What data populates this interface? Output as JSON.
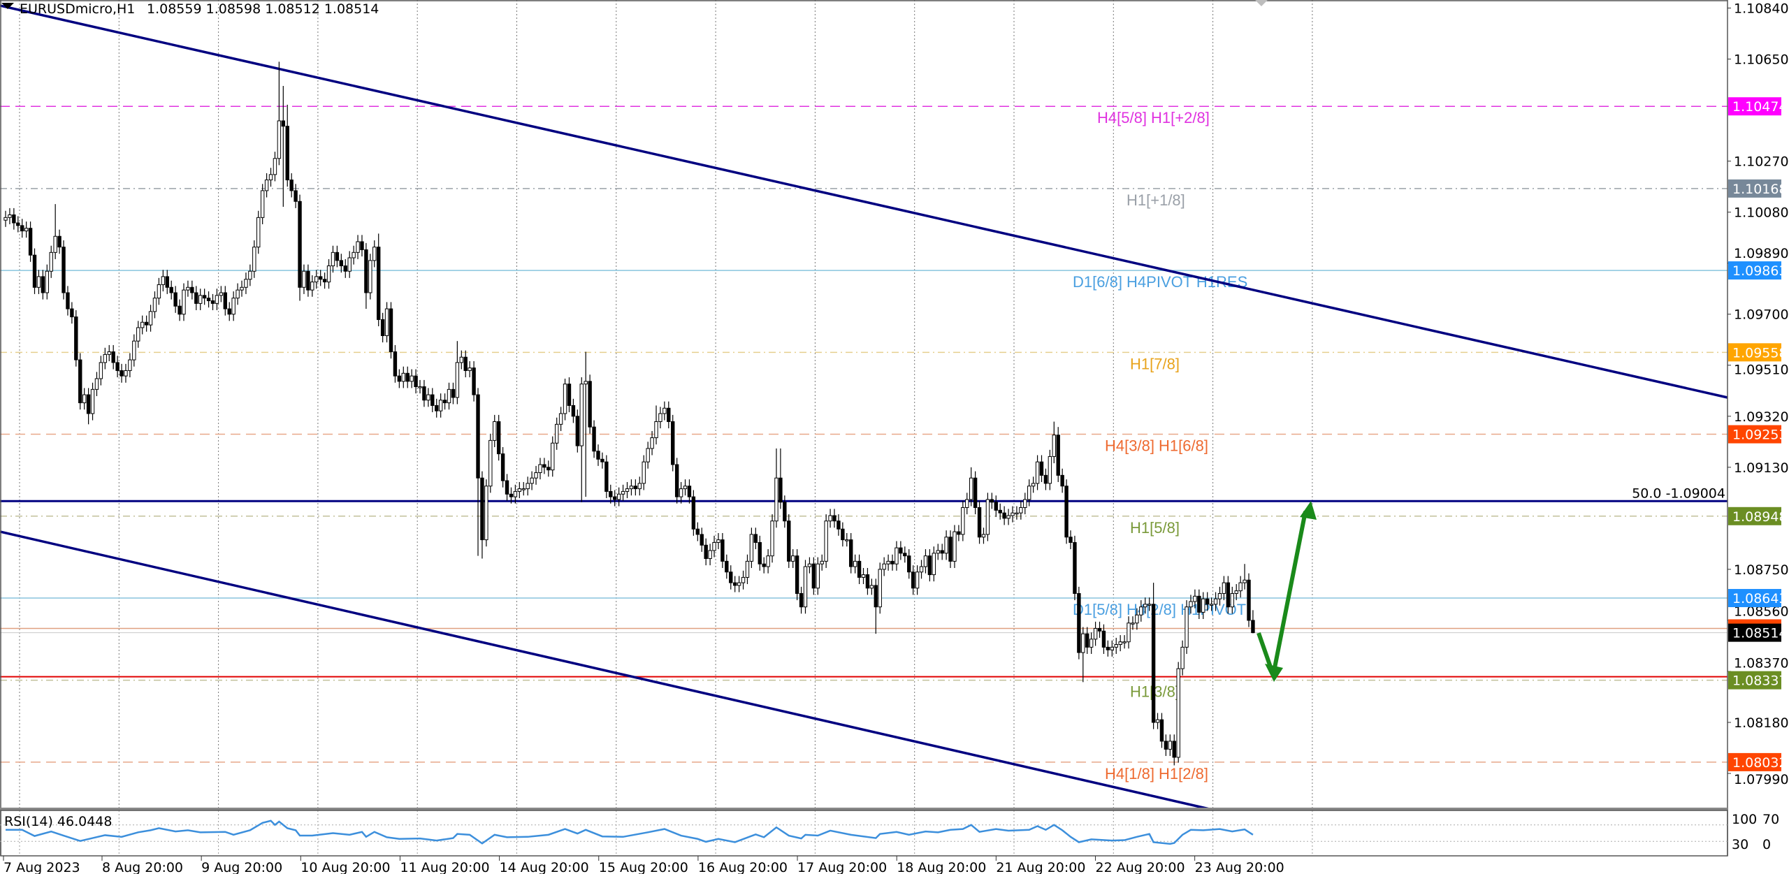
{
  "header": {
    "symbol": "EURUSDmicro,H1",
    "ohlc": "1.08559 1.08598 1.08512 1.08514"
  },
  "rsi_panel": {
    "label": "RSI(14) 46.0448",
    "scale_labels": [
      "100",
      "70",
      "30",
      "0"
    ],
    "line_color": "#3c8fdc"
  },
  "chart_data": {
    "type": "candlestick",
    "title": "EURUSDmicro,H1",
    "ylim": [
      1.0786,
      1.1087
    ],
    "grid": true,
    "y_ticks": [
      "1.10840",
      "1.10650",
      "1.10270",
      "1.10080",
      "1.09890",
      "1.09700",
      "1.09510",
      "1.09320",
      "1.09130",
      "1.08750",
      "1.08560",
      "1.08370",
      "1.08180",
      "1.07990"
    ],
    "x_ticks": [
      "7 Aug 2023",
      "8 Aug 20:00",
      "9 Aug 20:00",
      "10 Aug 20:00",
      "11 Aug 20:00",
      "14 Aug 20:00",
      "15 Aug 20:00",
      "16 Aug 20:00",
      "17 Aug 20:00",
      "18 Aug 20:00",
      "21 Aug 20:00",
      "22 Aug 20:00",
      "23 Aug 20:00"
    ],
    "candles": {
      "first_open": 1.1005,
      "close": [
        1.1006,
        1.1007,
        1.1004,
        1.1003,
        1.1001,
        1.1002,
        1.0992,
        1.098,
        1.0984,
        1.0978,
        1.0986,
        1.0993,
        1.0999,
        1.0995,
        1.0978,
        1.0972,
        1.0969,
        1.0953,
        1.0937,
        1.094,
        1.0933,
        1.0942,
        1.0946,
        1.0952,
        1.0955,
        1.0956,
        1.0952,
        1.0949,
        1.0947,
        1.0949,
        1.0953,
        1.096,
        1.0965,
        1.0967,
        1.0966,
        1.0971,
        1.0976,
        1.0981,
        1.0984,
        1.098,
        1.0978,
        1.0973,
        1.097,
        1.0979,
        1.098,
        1.0978,
        1.0974,
        1.0977,
        1.0976,
        1.0975,
        1.0974,
        1.0977,
        1.0978,
        1.0972,
        1.097,
        1.0976,
        1.0979,
        1.098,
        1.0983,
        1.0986,
        1.0995,
        1.1006,
        1.1016,
        1.102,
        1.1022,
        1.1028,
        1.1042,
        1.104,
        1.102,
        1.1016,
        1.1012,
        1.098,
        1.0986,
        1.0979,
        1.0982,
        1.0984,
        1.0983,
        1.0982,
        1.0988,
        1.0993,
        1.099,
        1.0988,
        1.0986,
        1.0991,
        1.0993,
        1.0997,
        1.0994,
        1.0978,
        1.099,
        1.0995,
        1.0968,
        1.0962,
        1.0972,
        1.0956,
        1.0947,
        1.0945,
        1.0948,
        1.0945,
        1.0947,
        1.0943,
        1.0943,
        1.0938,
        1.094,
        1.0936,
        1.0934,
        1.0938,
        1.0937,
        1.0942,
        1.0939,
        1.0952,
        1.0954,
        1.0949,
        1.095,
        1.094,
        1.0909,
        1.0886,
        1.0906,
        1.0923,
        1.093,
        1.0918,
        1.0908,
        1.0903,
        1.0902,
        1.0904,
        1.0905,
        1.0905,
        1.0907,
        1.0909,
        1.0911,
        1.0914,
        1.0913,
        1.0912,
        1.0922,
        1.0929,
        1.0933,
        1.0944,
        1.0936,
        1.0932,
        1.0921,
        1.0944,
        1.0945,
        1.0928,
        1.0919,
        1.0916,
        1.0915,
        1.0904,
        1.0902,
        1.0901,
        1.0903,
        1.0904,
        1.0905,
        1.0906,
        1.0905,
        1.0907,
        1.0915,
        1.092,
        1.0924,
        1.093,
        1.0933,
        1.0935,
        1.093,
        1.0914,
        1.0902,
        1.0905,
        1.0906,
        1.0902,
        1.089,
        1.0888,
        1.0884,
        1.0879,
        1.0882,
        1.0885,
        1.0886,
        1.0878,
        1.0874,
        1.087,
        1.0869,
        1.087,
        1.0872,
        1.0878,
        1.0888,
        1.0885,
        1.0877,
        1.0876,
        1.088,
        1.0893,
        1.0909,
        1.09,
        1.0893,
        1.0878,
        1.088,
        1.0866,
        1.0861,
        1.0876,
        1.0877,
        1.0868,
        1.0877,
        1.0878,
        1.0893,
        1.0895,
        1.0893,
        1.089,
        1.0886,
        1.0886,
        1.0876,
        1.0878,
        1.0872,
        1.0873,
        1.0868,
        1.0869,
        1.0861,
        1.0875,
        1.0877,
        1.0878,
        1.0877,
        1.0883,
        1.0881,
        1.088,
        1.0874,
        1.0868,
        1.0874,
        1.0876,
        1.088,
        1.0873,
        1.0881,
        1.0882,
        1.0881,
        1.0887,
        1.0878,
        1.0889,
        1.0888,
        1.0898,
        1.0901,
        1.0909,
        1.0898,
        1.0887,
        1.0888,
        1.0901,
        1.09,
        1.0897,
        1.0896,
        1.0894,
        1.0895,
        1.0896,
        1.0896,
        1.0898,
        1.0901,
        1.0906,
        1.0907,
        1.0915,
        1.091,
        1.0907,
        1.0917,
        1.0925,
        1.091,
        1.0906,
        1.0887,
        1.0885,
        1.0866,
        1.0844,
        1.0851,
        1.0846,
        1.0849,
        1.0853,
        1.0852,
        1.0846,
        1.0845,
        1.0846,
        1.0847,
        1.0848,
        1.0848,
        1.0855,
        1.0855,
        1.0858,
        1.0861,
        1.0862,
        1.0862,
        1.0818,
        1.0819,
        1.0811,
        1.0808,
        1.0811,
        1.0805,
        1.0838,
        1.0846,
        1.0861,
        1.0863,
        1.0865,
        1.0859,
        1.0864,
        1.0862,
        1.0862,
        1.0864,
        1.0866,
        1.087,
        1.0861,
        1.0866,
        1.0867,
        1.087,
        1.0871,
        1.0856,
        1.08514
      ],
      "extremes": [
        {
          "bar": 12,
          "high": 1.1011
        },
        {
          "bar": 20,
          "low": 1.0929
        },
        {
          "bar": 66,
          "high": 1.1064
        },
        {
          "bar": 67,
          "high": 1.1055,
          "low": 1.101
        },
        {
          "bar": 68,
          "high": 1.1048
        },
        {
          "bar": 71,
          "low": 1.0975
        },
        {
          "bar": 87,
          "low": 1.0972
        },
        {
          "bar": 90,
          "high": 1.1
        },
        {
          "bar": 109,
          "high": 1.096
        },
        {
          "bar": 114,
          "low": 1.088
        },
        {
          "bar": 115,
          "low": 1.0879
        },
        {
          "bar": 135,
          "high": 1.0946
        },
        {
          "bar": 139,
          "low": 1.09
        },
        {
          "bar": 140,
          "high": 1.0956,
          "low": 1.0902
        },
        {
          "bar": 157,
          "high": 1.0936
        },
        {
          "bar": 186,
          "high": 1.092
        },
        {
          "bar": 187,
          "high": 1.092
        },
        {
          "bar": 210,
          "low": 1.0851
        },
        {
          "bar": 233,
          "high": 1.0913
        },
        {
          "bar": 253,
          "high": 1.093
        },
        {
          "bar": 254,
          "high": 1.0928
        },
        {
          "bar": 260,
          "low": 1.0833
        },
        {
          "bar": 277,
          "high": 1.087
        },
        {
          "bar": 282,
          "low": 1.0802
        },
        {
          "bar": 283,
          "low": 1.0803
        },
        {
          "bar": 299,
          "high": 1.0877
        },
        {
          "bar": 301,
          "high": 1.08598,
          "low": 1.08512
        }
      ]
    },
    "rsi": [
      [
        0,
        58
      ],
      [
        4,
        58
      ],
      [
        7,
        43
      ],
      [
        11,
        54
      ],
      [
        14,
        44
      ],
      [
        18,
        31
      ],
      [
        21,
        38
      ],
      [
        24,
        45
      ],
      [
        28,
        41
      ],
      [
        32,
        52
      ],
      [
        35,
        57
      ],
      [
        37,
        62
      ],
      [
        41,
        54
      ],
      [
        44,
        57
      ],
      [
        47,
        52
      ],
      [
        53,
        53
      ],
      [
        55,
        46
      ],
      [
        59,
        57
      ],
      [
        62,
        75
      ],
      [
        64,
        80
      ],
      [
        65,
        70
      ],
      [
        66,
        78
      ],
      [
        68,
        62
      ],
      [
        70,
        57
      ],
      [
        71,
        44
      ],
      [
        74,
        44
      ],
      [
        79,
        50
      ],
      [
        83,
        46
      ],
      [
        86,
        53
      ],
      [
        87,
        41
      ],
      [
        89,
        53
      ],
      [
        92,
        40
      ],
      [
        95,
        36
      ],
      [
        100,
        37
      ],
      [
        104,
        32
      ],
      [
        108,
        38
      ],
      [
        109,
        48
      ],
      [
        112,
        46
      ],
      [
        115,
        25
      ],
      [
        118,
        46
      ],
      [
        121,
        40
      ],
      [
        126,
        41
      ],
      [
        131,
        46
      ],
      [
        135,
        60
      ],
      [
        138,
        49
      ],
      [
        140,
        58
      ],
      [
        144,
        42
      ],
      [
        149,
        41
      ],
      [
        155,
        52
      ],
      [
        159,
        60
      ],
      [
        161,
        52
      ],
      [
        163,
        44
      ],
      [
        167,
        36
      ],
      [
        169,
        29
      ],
      [
        172,
        36
      ],
      [
        176,
        28
      ],
      [
        181,
        47
      ],
      [
        183,
        40
      ],
      [
        186,
        64
      ],
      [
        189,
        44
      ],
      [
        192,
        37
      ],
      [
        193,
        46
      ],
      [
        196,
        44
      ],
      [
        199,
        56
      ],
      [
        204,
        46
      ],
      [
        210,
        38
      ],
      [
        211,
        48
      ],
      [
        215,
        53
      ],
      [
        218,
        46
      ],
      [
        222,
        54
      ],
      [
        225,
        52
      ],
      [
        228,
        58
      ],
      [
        231,
        60
      ],
      [
        233,
        70
      ],
      [
        235,
        53
      ],
      [
        239,
        60
      ],
      [
        242,
        56
      ],
      [
        247,
        58
      ],
      [
        249,
        67
      ],
      [
        251,
        58
      ],
      [
        253,
        70
      ],
      [
        255,
        57
      ],
      [
        257,
        41
      ],
      [
        259,
        28
      ],
      [
        262,
        35
      ],
      [
        267,
        32
      ],
      [
        270,
        33
      ],
      [
        273,
        41
      ],
      [
        276,
        48
      ],
      [
        277,
        28
      ],
      [
        281,
        24
      ],
      [
        282,
        26
      ],
      [
        284,
        46
      ],
      [
        286,
        58
      ],
      [
        289,
        57
      ],
      [
        293,
        60
      ],
      [
        296,
        54
      ],
      [
        299,
        59
      ],
      [
        301,
        46.0448
      ]
    ],
    "levels": [
      {
        "price": 1.10474,
        "tag": "1.10474",
        "label": "H4[5/8] H1[+2/8]",
        "color": "#e033e0",
        "tag_color": "#ff00ff",
        "style": "dash"
      },
      {
        "price": 1.10168,
        "tag": "1.10168",
        "label": "H1[+1/8]",
        "color": "#9aa0a8",
        "tag_color": "#778899",
        "style": "dashdot"
      },
      {
        "price": 1.09863,
        "tag": "1.09863",
        "label": "D1[6/8] H4PIVOT H1RES",
        "color": "#88c4de",
        "tag_color": "#1e90ff",
        "style": "solid",
        "label_color": "#4a9fe0"
      },
      {
        "price": 1.09558,
        "tag": "1.09558",
        "label": "H1[7/8]",
        "color": "#e6cf8e",
        "tag_color": "#ffa500",
        "style": "dashdot",
        "label_color": "#e8a31c"
      },
      {
        "price": 1.09253,
        "tag": "1.09253",
        "label": "H4[3/8] H1[6/8]",
        "color": "#e8a78a",
        "tag_color": "#ff4500",
        "style": "dash",
        "label_color": "#ee6a30"
      },
      {
        "price": 1.08948,
        "tag": "1.08948",
        "label": "H1[5/8]",
        "color": "#c2c09a",
        "tag_color": "#6b8e23",
        "style": "dashdot",
        "label_color": "#7a9a3a"
      },
      {
        "price": 1.08643,
        "tag": "1.08643",
        "label": "D1[5/8] H4[2/8] H1PIVOT",
        "color": "#88c4de",
        "tag_color": "#1e90ff",
        "style": "solid",
        "label_color": "#4a9fe0"
      },
      {
        "price": 1.08337,
        "tag": "1.08337",
        "label": "H1[3/8]",
        "color": "#c2c09a",
        "tag_color": "#6b8e23",
        "style": "dashdot",
        "label_color": "#7a9a3a"
      },
      {
        "price": 1.08032,
        "tag": "1.08032",
        "label": "H4[1/8] H1[2/8]",
        "color": "#e8a78a",
        "tag_color": "#ff4500",
        "style": "dash",
        "label_color": "#ee6a30"
      }
    ],
    "fib_line": {
      "price": 1.09004,
      "label": "50.0 -1.09004",
      "color": "#000080"
    },
    "support_line": {
      "price": 1.0835,
      "color": "#e00000"
    },
    "peach_line": {
      "price": 1.0853,
      "color": "#e0a080",
      "tag_color": "#ff4500"
    },
    "current_price": {
      "price": 1.08514,
      "tag": "1.08514",
      "tag_color": "#000000"
    },
    "trendline_color": "#000080",
    "arrow_color": "#1a8a1a"
  }
}
